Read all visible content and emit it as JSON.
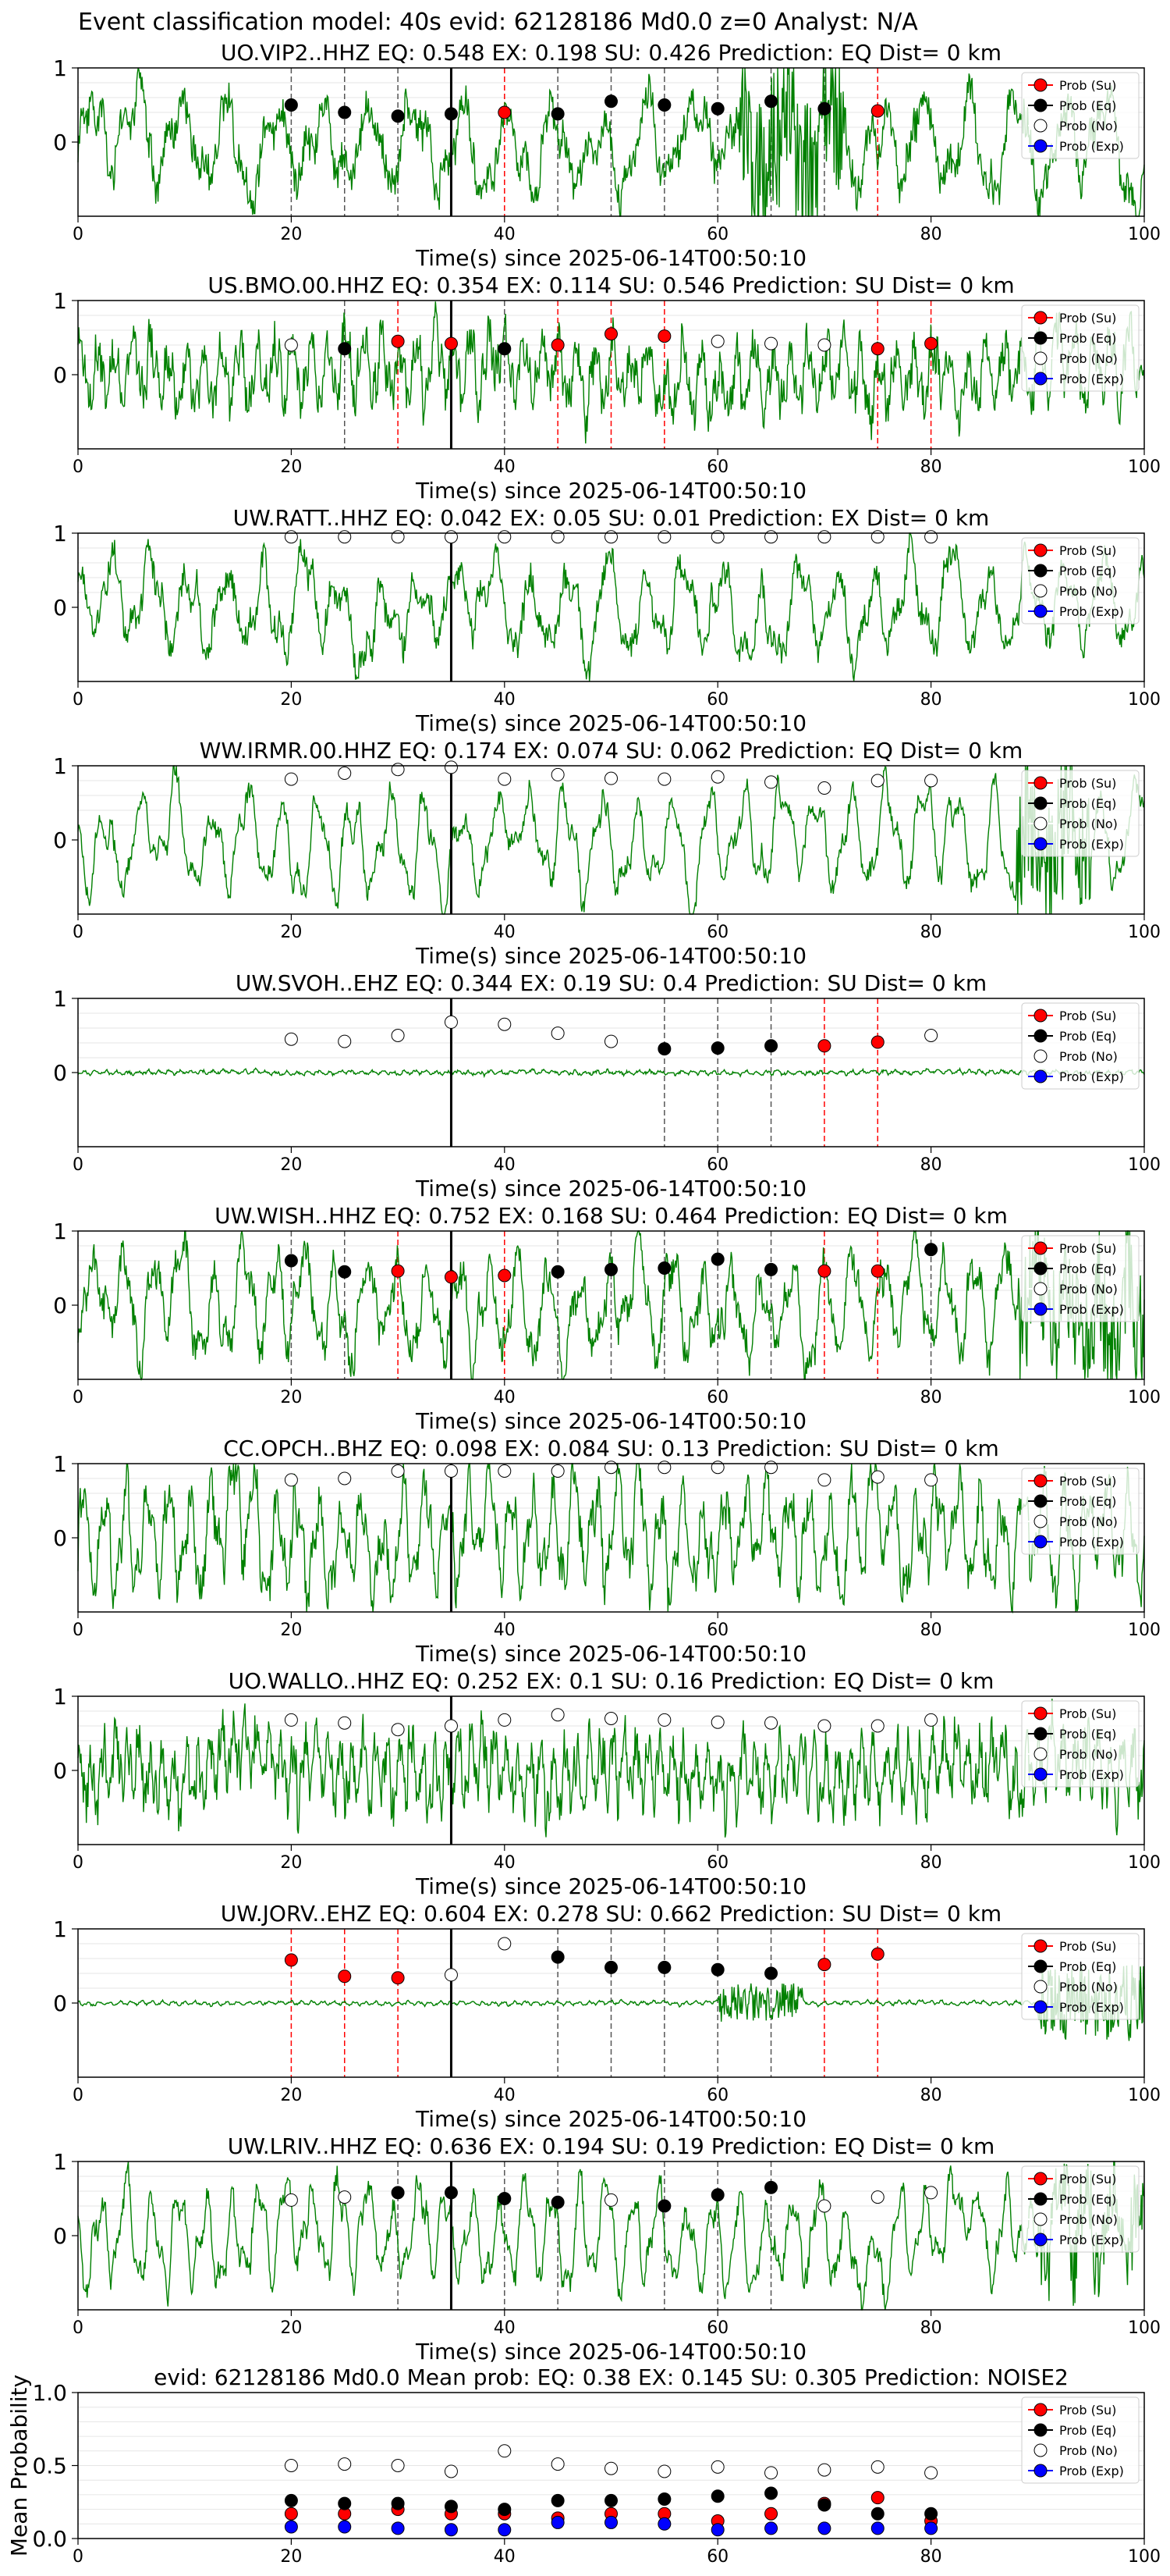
{
  "suptitle": "Event classification model: 40s evid: 62128186 Md0.0 z=0 Analyst: N/A",
  "legend": [
    "Prob (Su)",
    "Prob (Eq)",
    "Prob (No)",
    "Prob (Exp)"
  ],
  "colors": {
    "su": "#ff0000",
    "eq": "#000000",
    "no": "#ffffff",
    "exp": "#0000ff",
    "trace": "#008000",
    "su_line": "#ff0000",
    "eq_line": "#555555"
  },
  "xlabel": "Time(s) since 2025-06-14T00:50:10",
  "xticks": [
    0,
    20,
    40,
    60,
    80,
    100
  ],
  "chart_data": [
    {
      "type": "line",
      "title": "UO.VIP2..HHZ   EQ: 0.548  EX: 0.198  SU: 0.426   Prediction: EQ    Dist= 0 km",
      "xlabel": "Time(s) since 2025-06-14T00:50:10",
      "xlim": [
        0,
        100
      ],
      "ylim": [
        -1,
        1
      ],
      "yticks": [
        0,
        1
      ],
      "grid": true,
      "legend_position": "upper right",
      "pick_line": 35,
      "trace": {
        "freq": 0.23,
        "amp": 0.5,
        "noise": 0.4,
        "burst": [
          62,
          72,
          1.0
        ]
      },
      "windows": [
        {
          "t": 20,
          "cls": "eq",
          "p": 0.5
        },
        {
          "t": 25,
          "cls": "eq",
          "p": 0.4
        },
        {
          "t": 30,
          "cls": "eq",
          "p": 0.35
        },
        {
          "t": 35,
          "cls": "eq",
          "p": 0.38
        },
        {
          "t": 40,
          "cls": "su",
          "p": 0.4
        },
        {
          "t": 45,
          "cls": "eq",
          "p": 0.38
        },
        {
          "t": 50,
          "cls": "eq",
          "p": 0.55
        },
        {
          "t": 55,
          "cls": "eq",
          "p": 0.5
        },
        {
          "t": 60,
          "cls": "eq",
          "p": 0.45
        },
        {
          "t": 65,
          "cls": "eq",
          "p": 0.55
        },
        {
          "t": 70,
          "cls": "eq",
          "p": 0.45
        },
        {
          "t": 75,
          "cls": "su",
          "p": 0.42
        }
      ]
    },
    {
      "type": "line",
      "title": "US.BMO.00.HHZ   EQ: 0.354  EX: 0.114  SU: 0.546   Prediction: SU    Dist= 0 km",
      "xlabel": "Time(s) since 2025-06-14T00:50:10",
      "xlim": [
        0,
        100
      ],
      "ylim": [
        -1,
        1
      ],
      "yticks": [
        0,
        1
      ],
      "grid": true,
      "legend_position": "upper right",
      "pick_line": 35,
      "trace": {
        "freq": 0.6,
        "amp": 0.35,
        "noise": 0.5,
        "burst": null
      },
      "windows": [
        {
          "t": 20,
          "cls": "no",
          "p": 0.4
        },
        {
          "t": 25,
          "cls": "eq",
          "p": 0.35
        },
        {
          "t": 30,
          "cls": "su",
          "p": 0.45
        },
        {
          "t": 35,
          "cls": "su",
          "p": 0.42
        },
        {
          "t": 40,
          "cls": "eq",
          "p": 0.35
        },
        {
          "t": 45,
          "cls": "su",
          "p": 0.4
        },
        {
          "t": 50,
          "cls": "su",
          "p": 0.55
        },
        {
          "t": 55,
          "cls": "su",
          "p": 0.52
        },
        {
          "t": 60,
          "cls": "no",
          "p": 0.45
        },
        {
          "t": 65,
          "cls": "no",
          "p": 0.42
        },
        {
          "t": 70,
          "cls": "no",
          "p": 0.4
        },
        {
          "t": 75,
          "cls": "su",
          "p": 0.35
        },
        {
          "t": 80,
          "cls": "su",
          "p": 0.42
        }
      ]
    },
    {
      "type": "line",
      "title": "UW.RATT..HHZ   EQ: 0.042  EX: 0.05  SU: 0.01   Prediction: EX    Dist= 0 km",
      "xlabel": "Time(s) since 2025-06-14T00:50:10",
      "xlim": [
        0,
        100
      ],
      "ylim": [
        -1,
        1
      ],
      "yticks": [
        0,
        1
      ],
      "grid": true,
      "legend_position": "upper right",
      "pick_line": 35,
      "trace": {
        "freq": 0.28,
        "amp": 0.45,
        "noise": 0.3,
        "burst": null
      },
      "windows": [
        {
          "t": 20,
          "cls": "no",
          "p": 0.95
        },
        {
          "t": 25,
          "cls": "no",
          "p": 0.95
        },
        {
          "t": 30,
          "cls": "no",
          "p": 0.95
        },
        {
          "t": 35,
          "cls": "no",
          "p": 0.95
        },
        {
          "t": 40,
          "cls": "no",
          "p": 0.95
        },
        {
          "t": 45,
          "cls": "no",
          "p": 0.95
        },
        {
          "t": 50,
          "cls": "no",
          "p": 0.95
        },
        {
          "t": 55,
          "cls": "no",
          "p": 0.95
        },
        {
          "t": 60,
          "cls": "no",
          "p": 0.95
        },
        {
          "t": 65,
          "cls": "no",
          "p": 0.95
        },
        {
          "t": 70,
          "cls": "no",
          "p": 0.95
        },
        {
          "t": 75,
          "cls": "no",
          "p": 0.95
        },
        {
          "t": 80,
          "cls": "no",
          "p": 0.95
        }
      ]
    },
    {
      "type": "line",
      "title": "WW.IRMR.00.HHZ   EQ: 0.174  EX: 0.074  SU: 0.062   Prediction: EQ    Dist= 0 km",
      "xlabel": "Time(s) since 2025-06-14T00:50:10",
      "xlim": [
        0,
        100
      ],
      "ylim": [
        -1,
        1
      ],
      "yticks": [
        0,
        1
      ],
      "grid": true,
      "legend_position": "upper right",
      "pick_line": 35,
      "trace": {
        "freq": 0.3,
        "amp": 0.5,
        "noise": 0.15,
        "burst": [
          88,
          95,
          1.0
        ]
      },
      "windows": [
        {
          "t": 20,
          "cls": "no",
          "p": 0.82
        },
        {
          "t": 25,
          "cls": "no",
          "p": 0.9
        },
        {
          "t": 30,
          "cls": "no",
          "p": 0.95
        },
        {
          "t": 35,
          "cls": "no",
          "p": 0.98
        },
        {
          "t": 40,
          "cls": "no",
          "p": 0.82
        },
        {
          "t": 45,
          "cls": "no",
          "p": 0.88
        },
        {
          "t": 50,
          "cls": "no",
          "p": 0.83
        },
        {
          "t": 55,
          "cls": "no",
          "p": 0.82
        },
        {
          "t": 60,
          "cls": "no",
          "p": 0.85
        },
        {
          "t": 65,
          "cls": "no",
          "p": 0.78
        },
        {
          "t": 70,
          "cls": "no",
          "p": 0.7
        },
        {
          "t": 75,
          "cls": "no",
          "p": 0.8
        },
        {
          "t": 80,
          "cls": "no",
          "p": 0.8
        }
      ]
    },
    {
      "type": "line",
      "title": "UW.SVOH..EHZ   EQ: 0.344  EX: 0.19  SU: 0.4   Prediction: SU    Dist= 0 km",
      "xlabel": "Time(s) since 2025-06-14T00:50:10",
      "xlim": [
        0,
        100
      ],
      "ylim": [
        -1,
        1
      ],
      "yticks": [
        0,
        1
      ],
      "grid": true,
      "legend_position": "upper right",
      "pick_line": 35,
      "trace": {
        "freq": 1.0,
        "amp": 0.02,
        "noise": 0.03,
        "burst": null
      },
      "windows": [
        {
          "t": 20,
          "cls": "no",
          "p": 0.45
        },
        {
          "t": 25,
          "cls": "no",
          "p": 0.42
        },
        {
          "t": 30,
          "cls": "no",
          "p": 0.5
        },
        {
          "t": 35,
          "cls": "no",
          "p": 0.68
        },
        {
          "t": 40,
          "cls": "no",
          "p": 0.65
        },
        {
          "t": 45,
          "cls": "no",
          "p": 0.53
        },
        {
          "t": 50,
          "cls": "no",
          "p": 0.42
        },
        {
          "t": 55,
          "cls": "eq",
          "p": 0.32
        },
        {
          "t": 60,
          "cls": "eq",
          "p": 0.33
        },
        {
          "t": 65,
          "cls": "eq",
          "p": 0.36
        },
        {
          "t": 70,
          "cls": "su",
          "p": 0.36
        },
        {
          "t": 75,
          "cls": "su",
          "p": 0.41
        },
        {
          "t": 80,
          "cls": "no",
          "p": 0.5
        }
      ]
    },
    {
      "type": "line",
      "title": "UW.WISH..HHZ   EQ: 0.752  EX: 0.168  SU: 0.464   Prediction: EQ    Dist= 0 km",
      "xlabel": "Time(s) since 2025-06-14T00:50:10",
      "xlim": [
        0,
        100
      ],
      "ylim": [
        -1,
        1
      ],
      "yticks": [
        0,
        1
      ],
      "grid": true,
      "legend_position": "upper right",
      "pick_line": 35,
      "trace": {
        "freq": 0.35,
        "amp": 0.5,
        "noise": 0.35,
        "burst": [
          88,
          100,
          0.8
        ]
      },
      "windows": [
        {
          "t": 20,
          "cls": "eq",
          "p": 0.6
        },
        {
          "t": 25,
          "cls": "eq",
          "p": 0.45
        },
        {
          "t": 30,
          "cls": "su",
          "p": 0.46
        },
        {
          "t": 35,
          "cls": "su",
          "p": 0.38
        },
        {
          "t": 40,
          "cls": "su",
          "p": 0.4
        },
        {
          "t": 45,
          "cls": "eq",
          "p": 0.45
        },
        {
          "t": 50,
          "cls": "eq",
          "p": 0.48
        },
        {
          "t": 55,
          "cls": "eq",
          "p": 0.5
        },
        {
          "t": 60,
          "cls": "eq",
          "p": 0.62
        },
        {
          "t": 65,
          "cls": "eq",
          "p": 0.48
        },
        {
          "t": 70,
          "cls": "su",
          "p": 0.46
        },
        {
          "t": 75,
          "cls": "su",
          "p": 0.46
        },
        {
          "t": 80,
          "cls": "eq",
          "p": 0.75
        }
      ]
    },
    {
      "type": "line",
      "title": "CC.OPCH..BHZ   EQ: 0.098  EX: 0.084  SU: 0.13   Prediction: SU    Dist= 0 km",
      "xlabel": "Time(s) since 2025-06-14T00:50:10",
      "xlim": [
        0,
        100
      ],
      "ylim": [
        -1,
        1
      ],
      "yticks": [
        0,
        1
      ],
      "grid": true,
      "legend_position": "upper right",
      "pick_line": 35,
      "trace": {
        "freq": 0.5,
        "amp": 0.55,
        "noise": 0.45,
        "burst": null
      },
      "windows": [
        {
          "t": 20,
          "cls": "no",
          "p": 0.78
        },
        {
          "t": 25,
          "cls": "no",
          "p": 0.8
        },
        {
          "t": 30,
          "cls": "no",
          "p": 0.9
        },
        {
          "t": 35,
          "cls": "no",
          "p": 0.9
        },
        {
          "t": 40,
          "cls": "no",
          "p": 0.9
        },
        {
          "t": 45,
          "cls": "no",
          "p": 0.9
        },
        {
          "t": 50,
          "cls": "no",
          "p": 0.95
        },
        {
          "t": 55,
          "cls": "no",
          "p": 0.95
        },
        {
          "t": 60,
          "cls": "no",
          "p": 0.95
        },
        {
          "t": 65,
          "cls": "no",
          "p": 0.95
        },
        {
          "t": 70,
          "cls": "no",
          "p": 0.78
        },
        {
          "t": 75,
          "cls": "no",
          "p": 0.82
        },
        {
          "t": 80,
          "cls": "no",
          "p": 0.78
        }
      ]
    },
    {
      "type": "line",
      "title": "UO.WALLO..HHZ   EQ: 0.252  EX: 0.1  SU: 0.16   Prediction: EQ    Dist= 0 km",
      "xlabel": "Time(s) since 2025-06-14T00:50:10",
      "xlim": [
        0,
        100
      ],
      "ylim": [
        -1,
        1
      ],
      "yticks": [
        0,
        1
      ],
      "grid": true,
      "legend_position": "upper right",
      "pick_line": 35,
      "trace": {
        "freq": 0.9,
        "amp": 0.35,
        "noise": 0.55,
        "burst": null
      },
      "windows": [
        {
          "t": 20,
          "cls": "no",
          "p": 0.68
        },
        {
          "t": 25,
          "cls": "no",
          "p": 0.64
        },
        {
          "t": 30,
          "cls": "no",
          "p": 0.55
        },
        {
          "t": 35,
          "cls": "no",
          "p": 0.6
        },
        {
          "t": 40,
          "cls": "no",
          "p": 0.68
        },
        {
          "t": 45,
          "cls": "no",
          "p": 0.75
        },
        {
          "t": 50,
          "cls": "no",
          "p": 0.7
        },
        {
          "t": 55,
          "cls": "no",
          "p": 0.68
        },
        {
          "t": 60,
          "cls": "no",
          "p": 0.65
        },
        {
          "t": 65,
          "cls": "no",
          "p": 0.64
        },
        {
          "t": 70,
          "cls": "no",
          "p": 0.6
        },
        {
          "t": 75,
          "cls": "no",
          "p": 0.6
        },
        {
          "t": 80,
          "cls": "no",
          "p": 0.68
        }
      ]
    },
    {
      "type": "line",
      "title": "UW.JORV..EHZ   EQ: 0.604  EX: 0.278  SU: 0.662   Prediction: SU    Dist= 0 km",
      "xlabel": "Time(s) since 2025-06-14T00:50:10",
      "xlim": [
        0,
        100
      ],
      "ylim": [
        -1,
        1
      ],
      "yticks": [
        0,
        1
      ],
      "grid": true,
      "legend_position": "upper right",
      "pick_line": 35,
      "trace": {
        "freq": 1.0,
        "amp": 0.02,
        "noise": 0.02,
        "burst": [
          60,
          68,
          0.25
        ],
        "burst2": [
          90,
          100,
          0.5
        ]
      },
      "windows": [
        {
          "t": 20,
          "cls": "su",
          "p": 0.58
        },
        {
          "t": 25,
          "cls": "su",
          "p": 0.36
        },
        {
          "t": 30,
          "cls": "su",
          "p": 0.34
        },
        {
          "t": 35,
          "cls": "no",
          "p": 0.38
        },
        {
          "t": 40,
          "cls": "no",
          "p": 0.8
        },
        {
          "t": 45,
          "cls": "eq",
          "p": 0.62
        },
        {
          "t": 50,
          "cls": "eq",
          "p": 0.48
        },
        {
          "t": 55,
          "cls": "eq",
          "p": 0.48
        },
        {
          "t": 60,
          "cls": "eq",
          "p": 0.45
        },
        {
          "t": 65,
          "cls": "eq",
          "p": 0.4
        },
        {
          "t": 70,
          "cls": "su",
          "p": 0.52
        },
        {
          "t": 75,
          "cls": "su",
          "p": 0.66
        }
      ]
    },
    {
      "type": "line",
      "title": "UW.LRIV..HHZ   EQ: 0.636  EX: 0.194  SU: 0.19   Prediction: EQ    Dist= 0 km",
      "xlabel": "Time(s) since 2025-06-14T00:50:10",
      "xlim": [
        0,
        100
      ],
      "ylim": [
        -1,
        1
      ],
      "yticks": [
        0,
        1
      ],
      "grid": true,
      "legend_position": "upper right",
      "pick_line": 35,
      "trace": {
        "freq": 0.4,
        "amp": 0.5,
        "noise": 0.2,
        "burst": [
          90,
          100,
          0.5
        ]
      },
      "windows": [
        {
          "t": 20,
          "cls": "no",
          "p": 0.48
        },
        {
          "t": 25,
          "cls": "no",
          "p": 0.52
        },
        {
          "t": 30,
          "cls": "eq",
          "p": 0.58
        },
        {
          "t": 35,
          "cls": "eq",
          "p": 0.58
        },
        {
          "t": 40,
          "cls": "eq",
          "p": 0.5
        },
        {
          "t": 45,
          "cls": "eq",
          "p": 0.45
        },
        {
          "t": 50,
          "cls": "no",
          "p": 0.48
        },
        {
          "t": 55,
          "cls": "eq",
          "p": 0.4
        },
        {
          "t": 60,
          "cls": "eq",
          "p": 0.55
        },
        {
          "t": 65,
          "cls": "eq",
          "p": 0.65
        },
        {
          "t": 70,
          "cls": "no",
          "p": 0.4
        },
        {
          "t": 75,
          "cls": "no",
          "p": 0.52
        },
        {
          "t": 80,
          "cls": "no",
          "p": 0.58
        }
      ]
    },
    {
      "type": "scatter",
      "title": "evid: 62128186   Md0.0   Mean prob:   EQ: 0.38  EX: 0.145  SU: 0.305   Prediction: NOISE2",
      "ylabel": "Mean Probability",
      "xlim": [
        0,
        100
      ],
      "ylim": [
        0,
        1
      ],
      "yticks": [
        0.0,
        0.5,
        1.0
      ],
      "ytick_labels": [
        "0.0",
        "0.5",
        "1.0"
      ],
      "grid": true,
      "legend_position": "upper right",
      "x": [
        20,
        25,
        30,
        35,
        40,
        45,
        50,
        55,
        60,
        65,
        70,
        75,
        80
      ],
      "series": [
        {
          "name": "Prob (Su)",
          "cls": "su",
          "values": [
            0.17,
            0.17,
            0.2,
            0.17,
            0.17,
            0.14,
            0.17,
            0.17,
            0.12,
            0.17,
            0.24,
            0.28,
            0.12
          ]
        },
        {
          "name": "Prob (Eq)",
          "cls": "eq",
          "values": [
            0.26,
            0.24,
            0.24,
            0.22,
            0.2,
            0.26,
            0.26,
            0.27,
            0.29,
            0.31,
            0.23,
            0.17,
            0.17
          ]
        },
        {
          "name": "Prob (No)",
          "cls": "no",
          "values": [
            0.5,
            0.51,
            0.5,
            0.46,
            0.6,
            0.51,
            0.48,
            0.46,
            0.49,
            0.45,
            0.47,
            0.49,
            0.45
          ]
        },
        {
          "name": "Prob (Exp)",
          "cls": "exp",
          "values": [
            0.08,
            0.08,
            0.07,
            0.06,
            0.06,
            0.11,
            0.11,
            0.1,
            0.06,
            0.07,
            0.07,
            0.07,
            0.07
          ]
        }
      ]
    }
  ]
}
